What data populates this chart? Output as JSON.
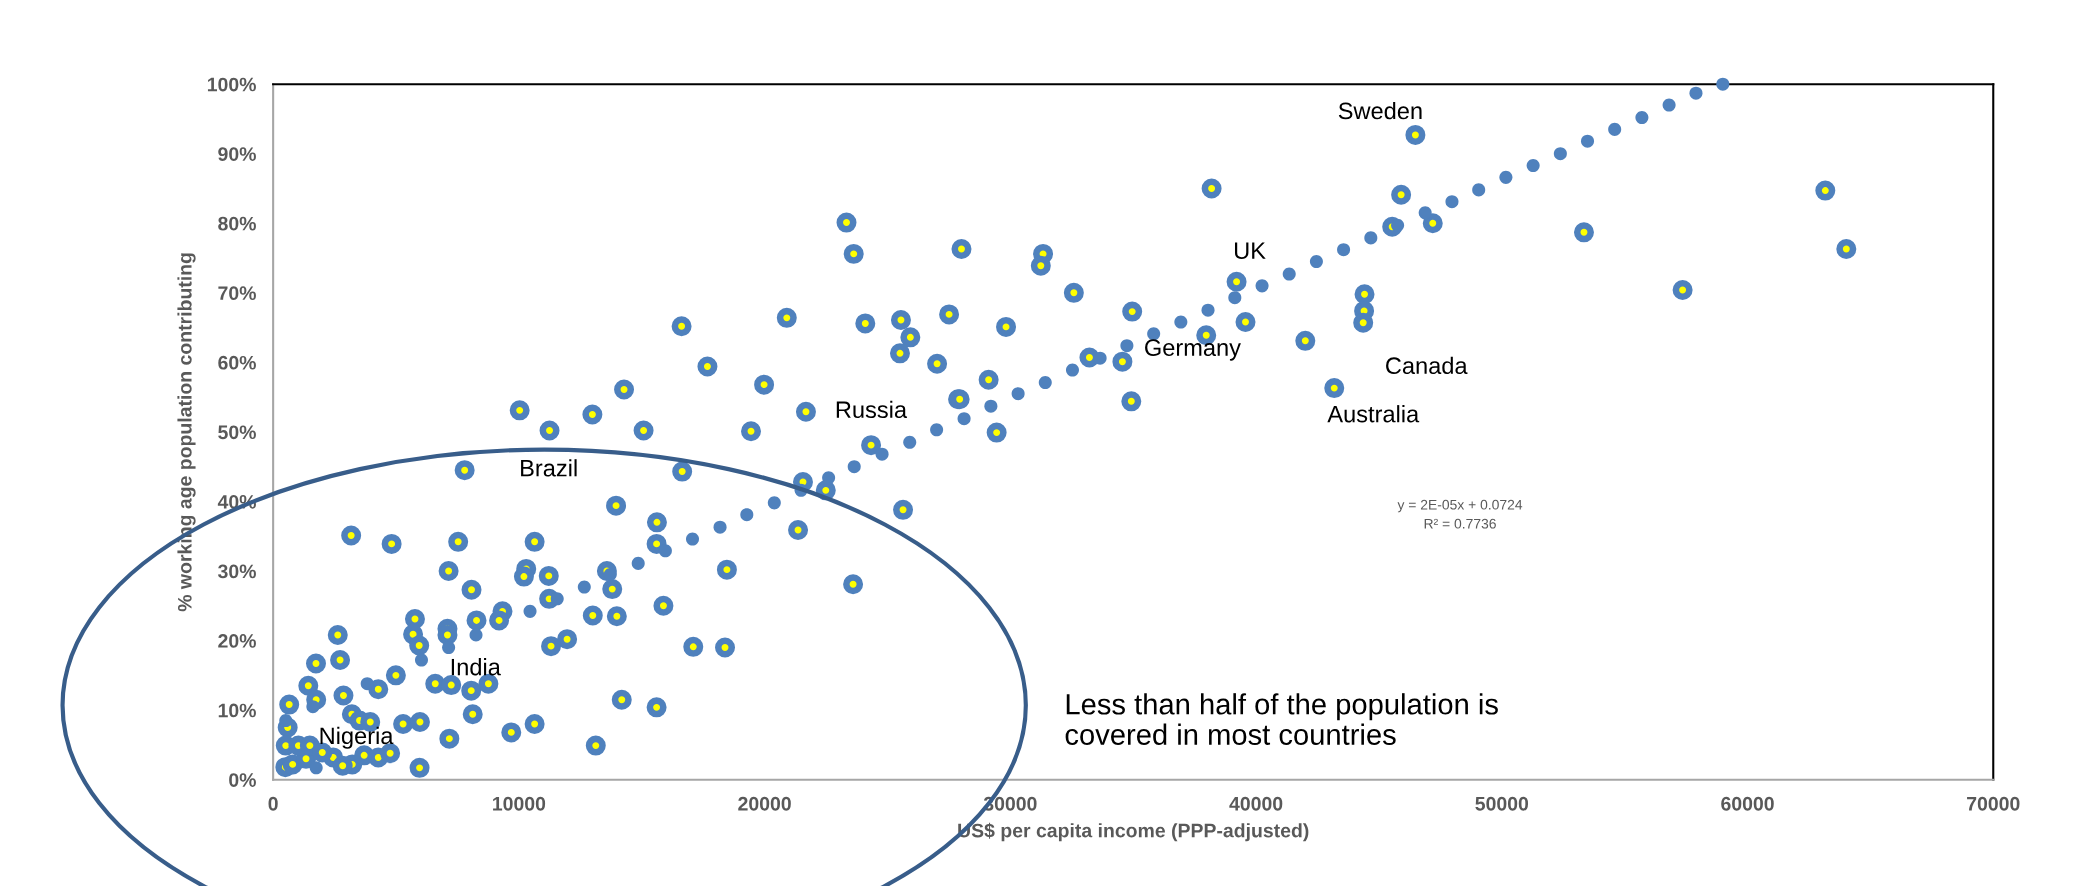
{
  "chart_data": {
    "type": "scatter",
    "xlabel": "US$ per capita income (PPP-adjusted)",
    "ylabel": "% working age population contributing",
    "xlim": [
      0,
      70000
    ],
    "xticks": [
      0,
      10000,
      20000,
      30000,
      40000,
      50000,
      60000,
      70000
    ],
    "ylim": [
      0,
      1
    ],
    "yticks": [
      {
        "value": 0,
        "label": "0%"
      },
      {
        "value": 0.1,
        "label": "10%"
      },
      {
        "value": 0.2,
        "label": "20%"
      },
      {
        "value": 0.3,
        "label": "30%"
      },
      {
        "value": 0.4,
        "label": "40%"
      },
      {
        "value": 0.5,
        "label": "50%"
      },
      {
        "value": 0.6,
        "label": "60%"
      },
      {
        "value": 0.7,
        "label": "70%"
      },
      {
        "value": 0.8,
        "label": "80%"
      },
      {
        "value": 0.9,
        "label": "90%"
      },
      {
        "value": 1,
        "label": "100%"
      }
    ],
    "grid": false,
    "marker": "circle",
    "series": [
      {
        "color": "#4f81bd",
        "x": [
          11248,
          15075,
          19447,
          7794,
          16646,
          13955,
          15619,
          21562,
          22490,
          21361,
          23601,
          3175,
          4822,
          7530,
          10641,
          15605,
          7141,
          10299,
          10206,
          11217,
          13582,
          13800,
          18466,
          8073,
          11232,
          9334,
          9195,
          13008,
          13987,
          15883,
          8277,
          5772,
          5695,
          5944,
          7094,
          7094,
          2630,
          2724,
          1744,
          1431,
          1752,
          654,
          592,
          514,
          497,
          794,
          1339,
          2443,
          3220,
          3703,
          4279,
          4761,
          5959,
          7171,
          2862,
          3204,
          3516,
          3951,
          4279,
          4995,
          5289,
          5975,
          6597,
          7248,
          8061,
          8760,
          8122,
          9691,
          10641,
          11309,
          11963,
          14187,
          15605,
          13130,
          17097,
          18389,
          1028,
          1493,
          2000,
          2830,
          23333,
          23626,
          16622,
          20903,
          24098,
          25549,
          25931,
          25509,
          27019,
          27508,
          17674,
          19979,
          14280,
          10033,
          12992,
          21683,
          27873,
          24333,
          28012,
          31332,
          31240,
          32585,
          29825,
          34959,
          29117,
          27938,
          29443,
          33219,
          34561,
          34923,
          37972,
          38191,
          39207,
          39570,
          45540,
          45903,
          46484,
          47191,
          53344,
          44414,
          44396,
          44360,
          42004,
          43182,
          25634,
          63165,
          64020,
          57358
        ],
        "values": [
          0.502,
          0.502,
          0.501,
          0.445,
          0.443,
          0.394,
          0.37,
          0.428,
          0.416,
          0.359,
          0.281,
          0.351,
          0.339,
          0.342,
          0.342,
          0.339,
          0.3,
          0.303,
          0.292,
          0.293,
          0.3,
          0.274,
          0.302,
          0.273,
          0.26,
          0.242,
          0.229,
          0.236,
          0.235,
          0.25,
          0.229,
          0.231,
          0.209,
          0.193,
          0.217,
          0.208,
          0.208,
          0.172,
          0.167,
          0.135,
          0.115,
          0.108,
          0.075,
          0.049,
          0.018,
          0.022,
          0.03,
          0.032,
          0.022,
          0.035,
          0.032,
          0.038,
          0.017,
          0.059,
          0.121,
          0.094,
          0.085,
          0.083,
          0.13,
          0.15,
          0.08,
          0.083,
          0.138,
          0.136,
          0.128,
          0.138,
          0.094,
          0.068,
          0.08,
          0.192,
          0.202,
          0.115,
          0.104,
          0.049,
          0.191,
          0.19,
          0.049,
          0.049,
          0.039,
          0.02,
          0.801,
          0.756,
          0.652,
          0.664,
          0.656,
          0.661,
          0.636,
          0.613,
          0.598,
          0.669,
          0.594,
          0.568,
          0.561,
          0.531,
          0.525,
          0.529,
          0.547,
          0.481,
          0.763,
          0.756,
          0.739,
          0.7,
          0.651,
          0.673,
          0.575,
          0.547,
          0.499,
          0.607,
          0.601,
          0.544,
          0.639,
          0.85,
          0.716,
          0.658,
          0.795,
          0.841,
          0.927,
          0.8,
          0.787,
          0.698,
          0.674,
          0.657,
          0.631,
          0.563,
          0.388,
          0.847,
          0.763,
          0.704
        ]
      },
      {
        "color": "#4f81bd",
        "x": [
          21485,
          22605,
          23647,
          20395,
          19276,
          18187,
          17066,
          15963,
          14857,
          12663,
          11561,
          10455,
          8256,
          6037,
          7141,
          1618,
          514,
          1752,
          3829,
          13720,
          27000,
          28118,
          29208,
          30317,
          31422,
          32529,
          33654,
          34744,
          35833,
          36939,
          38045,
          39135,
          40244,
          41349,
          42456,
          43561,
          44670,
          45760,
          46882,
          47972,
          49060,
          50167,
          51276,
          52383,
          53488,
          54594,
          55702,
          56808,
          57902,
          58995,
          25906,
          24780
        ],
        "values": [
          0.416,
          0.434,
          0.45,
          0.398,
          0.381,
          0.363,
          0.346,
          0.329,
          0.311,
          0.277,
          0.26,
          0.242,
          0.208,
          0.172,
          0.19,
          0.105,
          0.085,
          0.017,
          0.138,
          0.295,
          0.503,
          0.519,
          0.537,
          0.555,
          0.571,
          0.589,
          0.606,
          0.624,
          0.641,
          0.658,
          0.675,
          0.693,
          0.71,
          0.727,
          0.745,
          0.762,
          0.779,
          0.797,
          0.815,
          0.831,
          0.848,
          0.866,
          0.883,
          0.9,
          0.918,
          0.935,
          0.952,
          0.97,
          0.987,
          1.0,
          0.485,
          0.468
        ]
      }
    ],
    "annotations": [
      {
        "text": "Sweden",
        "x": 46484,
        "y": 0.927
      },
      {
        "text": "UK",
        "x": 39207,
        "y": 0.716
      },
      {
        "text": "Germany",
        "x": 34561,
        "y": 0.601
      },
      {
        "text": "Canada",
        "x": 44360,
        "y": 0.657
      },
      {
        "text": "Australia",
        "x": 43182,
        "y": 0.563
      },
      {
        "text": "Russia",
        "x": 21683,
        "y": 0.529
      },
      {
        "text": "Brazil",
        "x": 7794,
        "y": 0.445
      },
      {
        "text": "India",
        "x": 7248,
        "y": 0.136
      },
      {
        "text": "Nigeria",
        "x": 1339,
        "y": 0.03
      },
      "y = 2E-05x + 0.0724\nR² = 0.7736",
      "Less than half of the population is\ncovered in most countries"
    ]
  }
}
